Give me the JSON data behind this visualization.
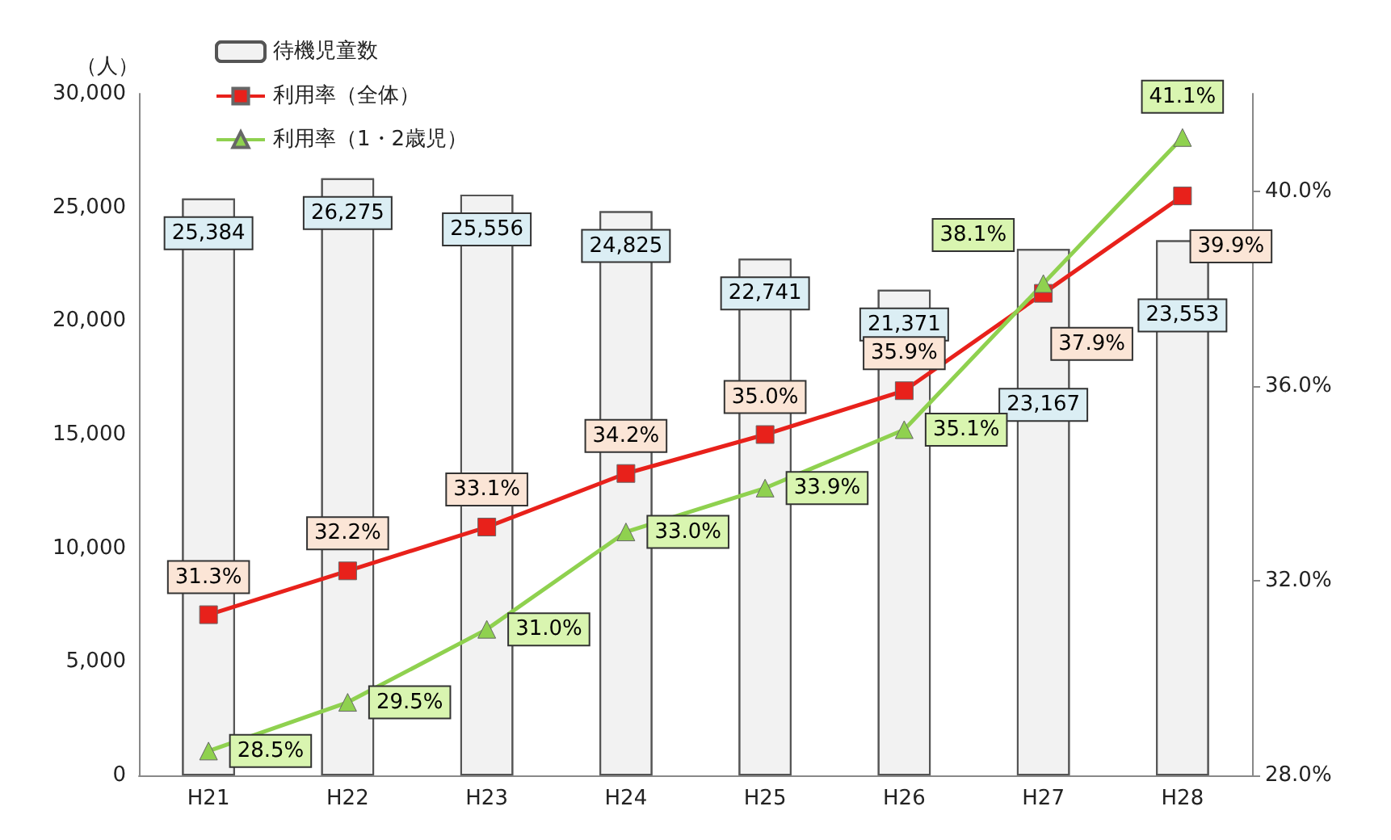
{
  "chart_data": {
    "type": "bar",
    "ylabel": "（人）",
    "categories": [
      "H21",
      "H22",
      "H23",
      "H24",
      "H25",
      "H26",
      "H27",
      "H28"
    ],
    "series": [
      {
        "name": "待機児童数",
        "color": "#f2f2f2",
        "values": [
          25384,
          26275,
          25556,
          24825,
          22741,
          21371,
          23167,
          23553
        ],
        "value_labels": [
          "25,384",
          "26,275",
          "25,556",
          "24,825",
          "22,741",
          "21,371",
          "23,167",
          "23,553"
        ]
      },
      {
        "name": "利用率（全体）",
        "type": "line",
        "axis": "y2",
        "color": "#e8211b",
        "marker": "square",
        "values": [
          31.3,
          32.2,
          33.1,
          34.2,
          35.0,
          35.9,
          37.9,
          39.9
        ],
        "value_labels": [
          "31.3%",
          "32.2%",
          "33.1%",
          "34.2%",
          "35.0%",
          "35.9%",
          "37.9%",
          "39.9%"
        ]
      },
      {
        "name": "利用率（1・2歳児）",
        "type": "line",
        "axis": "y2",
        "color": "#8fd14f",
        "marker": "triangle",
        "values": [
          28.5,
          29.5,
          31.0,
          33.0,
          33.9,
          35.1,
          38.1,
          41.1
        ],
        "value_labels": [
          "28.5%",
          "29.5%",
          "31.0%",
          "33.0%",
          "33.9%",
          "35.1%",
          "38.1%",
          "41.1%"
        ]
      }
    ],
    "ylim": [
      0,
      30000
    ],
    "yticks": [
      {
        "value": 0,
        "label": "0"
      },
      {
        "value": 5000,
        "label": "5,000"
      },
      {
        "value": 10000,
        "label": "10,000"
      },
      {
        "value": 15000,
        "label": "15,000"
      },
      {
        "value": 20000,
        "label": "20,000"
      },
      {
        "value": 25000,
        "label": "25,000"
      },
      {
        "value": 30000,
        "label": "30,000"
      }
    ],
    "y2lim": [
      28,
      42
    ],
    "y2ticks": [
      {
        "value": 28,
        "label": "28.0%"
      },
      {
        "value": 32,
        "label": "32.0%"
      },
      {
        "value": 36,
        "label": "36.0%"
      },
      {
        "value": 40,
        "label": "40.0%"
      }
    ],
    "legend": "top left",
    "grid": false
  }
}
